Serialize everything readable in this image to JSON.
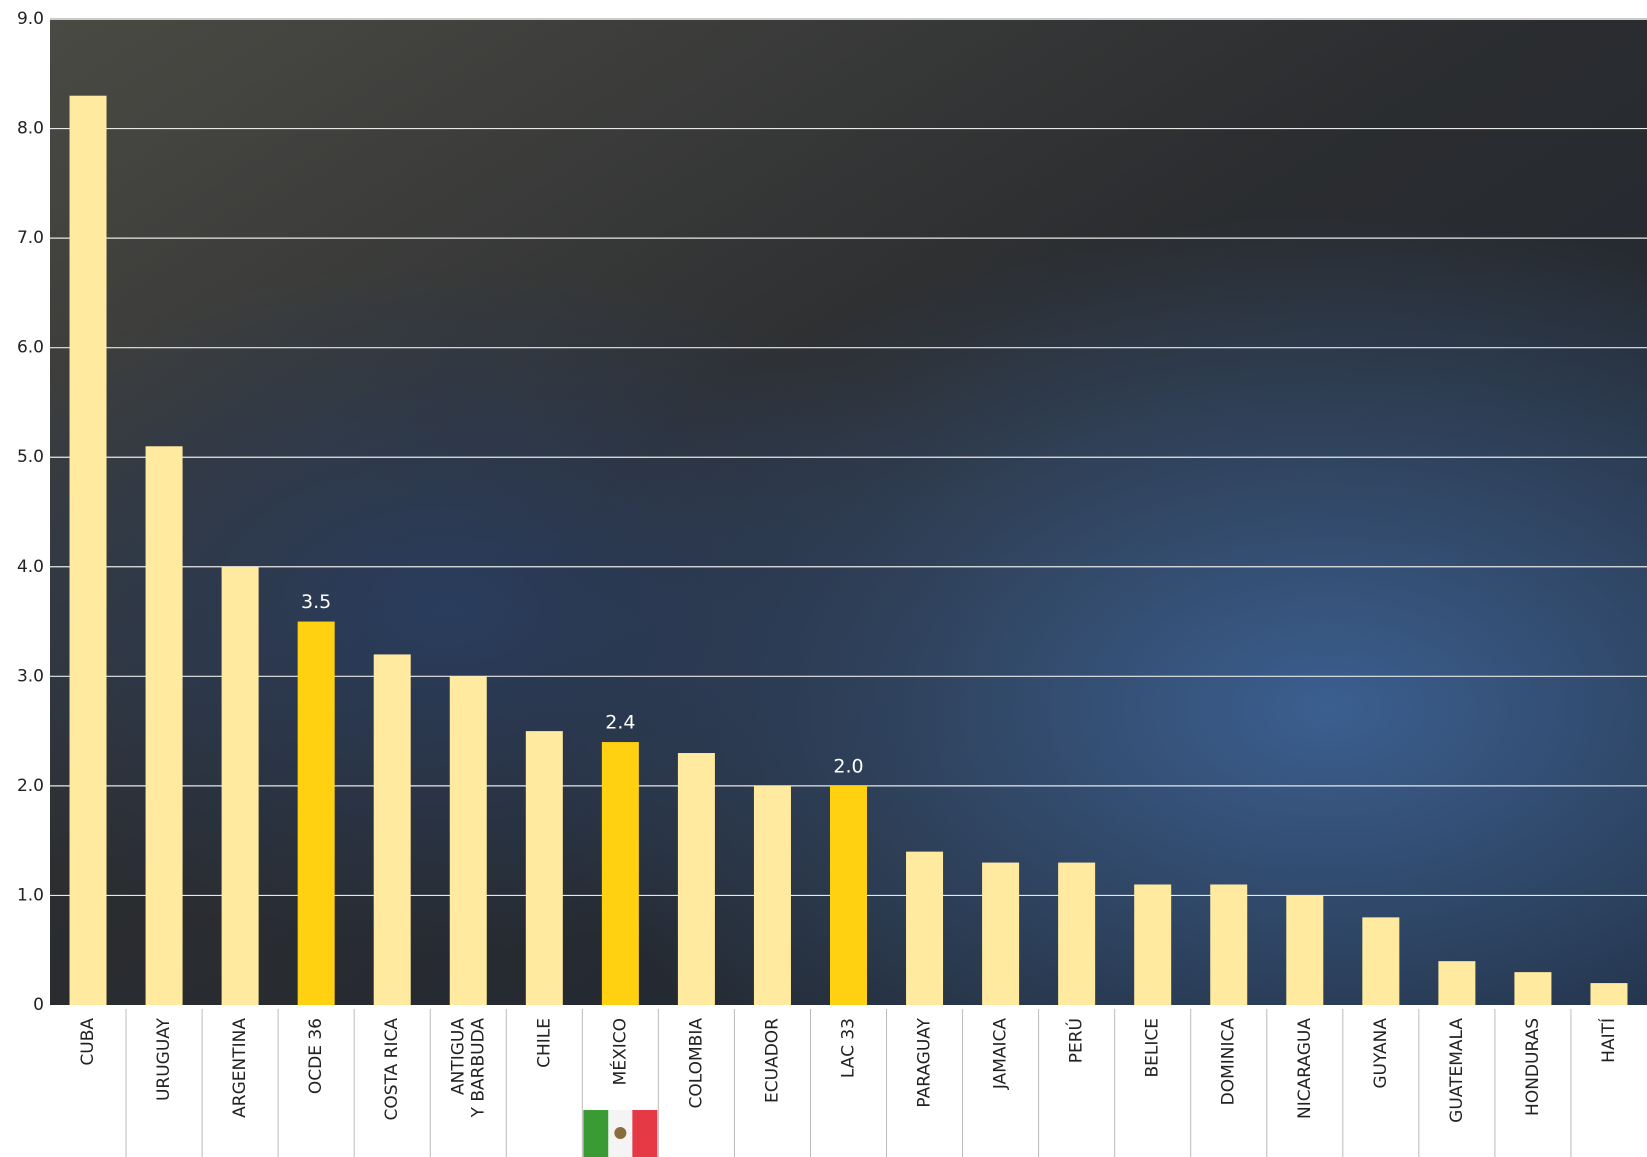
{
  "chart_data": {
    "type": "bar",
    "categories": [
      "CUBA",
      "URUGUAY",
      "ARGENTINA",
      "OCDE 36",
      "COSTA RICA",
      "ANTIGUA\nY BARBUDA",
      "CHILE",
      "MÉXICO",
      "COLOMBIA",
      "ECUADOR",
      "LAC 33",
      "PARAGUAY",
      "JAMAICA",
      "PERÚ",
      "BELICE",
      "DOMINICA",
      "NICARAGUA",
      "GUYANA",
      "GUATEMALA",
      "HONDURAS",
      "HAITÍ"
    ],
    "values": [
      8.3,
      5.1,
      4.0,
      3.5,
      3.2,
      3.0,
      2.5,
      2.4,
      2.3,
      2.0,
      2.0,
      1.4,
      1.3,
      1.3,
      1.1,
      1.1,
      1.0,
      0.8,
      0.4,
      0.3,
      0.2
    ],
    "value_labels": [
      null,
      null,
      null,
      "3.5",
      null,
      null,
      null,
      "2.4",
      null,
      null,
      "2.0",
      null,
      null,
      null,
      null,
      null,
      null,
      null,
      null,
      null,
      null
    ],
    "colors": [
      "#ffeaa0",
      "#ffeaa0",
      "#ffeaa0",
      "#ffd110",
      "#ffeaa0",
      "#ffeaa0",
      "#ffeaa0",
      "#ffd110",
      "#ffeaa0",
      "#ffeaa0",
      "#ffd110",
      "#ffeaa0",
      "#ffeaa0",
      "#ffeaa0",
      "#ffeaa0",
      "#ffeaa0",
      "#ffeaa0",
      "#ffeaa0",
      "#ffeaa0",
      "#ffeaa0",
      "#ffeaa0"
    ],
    "ylim": [
      0,
      9
    ],
    "yticks": [
      0,
      {
        "value": 1,
        "label": "1.0"
      },
      {
        "value": 2,
        "label": "2.0"
      },
      {
        "value": 3,
        "label": "3.0"
      },
      {
        "value": 4,
        "label": "4.0"
      },
      {
        "value": 5,
        "label": "5.0"
      },
      {
        "value": 6,
        "label": "6.0"
      },
      {
        "value": 7,
        "label": "7.0"
      },
      {
        "value": 8,
        "label": "8.0"
      },
      {
        "value": 9,
        "label": "9.0"
      }
    ],
    "grid": true
  }
}
